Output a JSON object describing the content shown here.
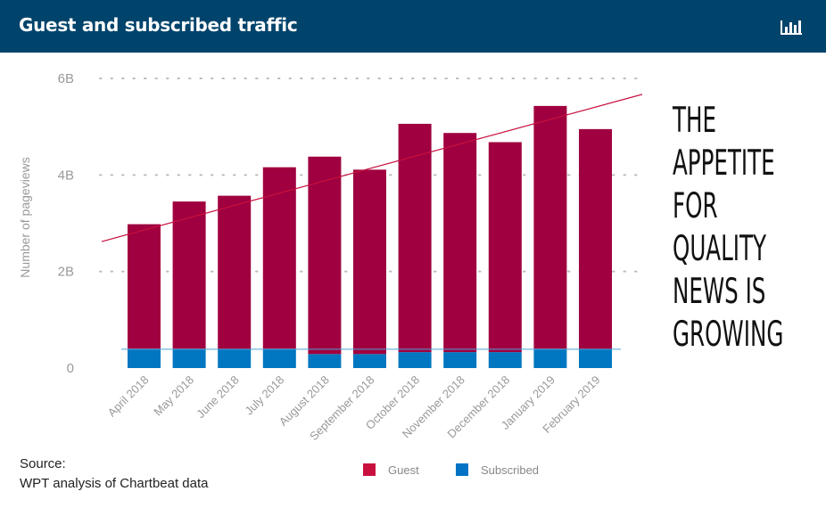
{
  "header": {
    "title": "Guest and subscribed traffic",
    "icon": "bar-chart-icon"
  },
  "colors": {
    "header_bg": "#00436b",
    "guest": "#a0003f",
    "subscribed": "#0077c0",
    "legend_guest": "#c8103e",
    "legend_subscribed": "#0073c4",
    "trendline": "#c8103e",
    "grid": "#bbbbbb",
    "axis_text": "#999999"
  },
  "chart_data": {
    "type": "bar",
    "stacked": true,
    "title": "Guest and subscribed traffic",
    "xlabel": "",
    "ylabel": "Number of pageviews",
    "ylim": [
      0,
      6
    ],
    "yticks": [
      0,
      2,
      4,
      6
    ],
    "ytick_labels": [
      "0",
      "2B",
      "4B",
      "6B"
    ],
    "grid": true,
    "categories": [
      "April 2018",
      "May 2018",
      "June 2018",
      "July 2018",
      "August 2018",
      "September 2018",
      "October 2018",
      "November 2018",
      "December 2018",
      "January 2019",
      "February 2019"
    ],
    "series": [
      {
        "name": "Subscribed",
        "values": [
          0.4,
          0.4,
          0.39,
          0.4,
          0.29,
          0.29,
          0.33,
          0.33,
          0.33,
          0.4,
          0.39
        ]
      },
      {
        "name": "Guest",
        "values": [
          2.58,
          3.05,
          3.18,
          3.76,
          4.09,
          3.82,
          4.73,
          4.54,
          4.35,
          5.03,
          4.56
        ]
      }
    ],
    "trendline": {
      "series": "Total",
      "start": 2.62,
      "end": 5.67
    },
    "reference_line": 0.39,
    "legend": [
      "Guest",
      "Subscribed"
    ],
    "legend_position": "bottom"
  },
  "annotation": {
    "lines": [
      "THE",
      "APPETITE",
      "FOR",
      "QUALITY",
      "NEWS IS",
      "GROWING"
    ]
  },
  "source": {
    "label": "Source:",
    "text": "WPT analysis of Chartbeat data"
  }
}
